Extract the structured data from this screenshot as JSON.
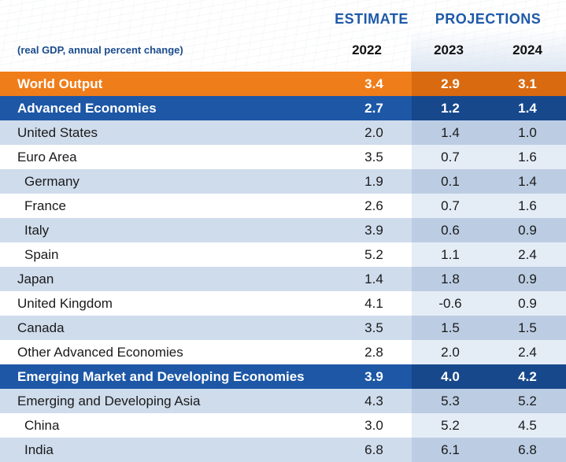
{
  "header": {
    "estimate_label": "ESTIMATE",
    "projections_label": "PROJECTIONS",
    "subtitle": "(real GDP, annual percent change)",
    "years": [
      "2022",
      "2023",
      "2024"
    ]
  },
  "colors": {
    "world_output_bar": "#ef7d1a",
    "group_bar": "#1d57a6",
    "header_text": "#1e5aa8"
  },
  "chart_data": {
    "type": "table",
    "columns": [
      "2022",
      "2023",
      "2024"
    ],
    "rows": [
      {
        "label": "World Output",
        "values": [
          "3.4",
          "2.9",
          "3.1"
        ],
        "style": "orange"
      },
      {
        "label": "Advanced Economies",
        "values": [
          "2.7",
          "1.2",
          "1.4"
        ],
        "style": "blue"
      },
      {
        "label": "United States",
        "values": [
          "2.0",
          "1.4",
          "1.0"
        ],
        "style": "shade"
      },
      {
        "label": "Euro Area",
        "values": [
          "3.5",
          "0.7",
          "1.6"
        ],
        "style": "plain"
      },
      {
        "label": "Germany",
        "values": [
          "1.9",
          "0.1",
          "1.4"
        ],
        "style": "shade",
        "indent": true
      },
      {
        "label": "France",
        "values": [
          "2.6",
          "0.7",
          "1.6"
        ],
        "style": "plain",
        "indent": true
      },
      {
        "label": "Italy",
        "values": [
          "3.9",
          "0.6",
          "0.9"
        ],
        "style": "shade",
        "indent": true
      },
      {
        "label": "Spain",
        "values": [
          "5.2",
          "1.1",
          "2.4"
        ],
        "style": "plain",
        "indent": true
      },
      {
        "label": "Japan",
        "values": [
          "1.4",
          "1.8",
          "0.9"
        ],
        "style": "shade"
      },
      {
        "label": "United Kingdom",
        "values": [
          "4.1",
          "-0.6",
          "0.9"
        ],
        "style": "plain"
      },
      {
        "label": "Canada",
        "values": [
          "3.5",
          "1.5",
          "1.5"
        ],
        "style": "shade"
      },
      {
        "label": "Other Advanced Economies",
        "values": [
          "2.8",
          "2.0",
          "2.4"
        ],
        "style": "plain"
      },
      {
        "label": "Emerging Market and Developing Economies",
        "values": [
          "3.9",
          "4.0",
          "4.2"
        ],
        "style": "blue"
      },
      {
        "label": "Emerging and Developing Asia",
        "values": [
          "4.3",
          "5.3",
          "5.2"
        ],
        "style": "shade"
      },
      {
        "label": "China",
        "values": [
          "3.0",
          "5.2",
          "4.5"
        ],
        "style": "plain",
        "indent": true
      },
      {
        "label": "India",
        "values": [
          "6.8",
          "6.1",
          "6.8"
        ],
        "style": "shade",
        "indent": true
      }
    ]
  }
}
